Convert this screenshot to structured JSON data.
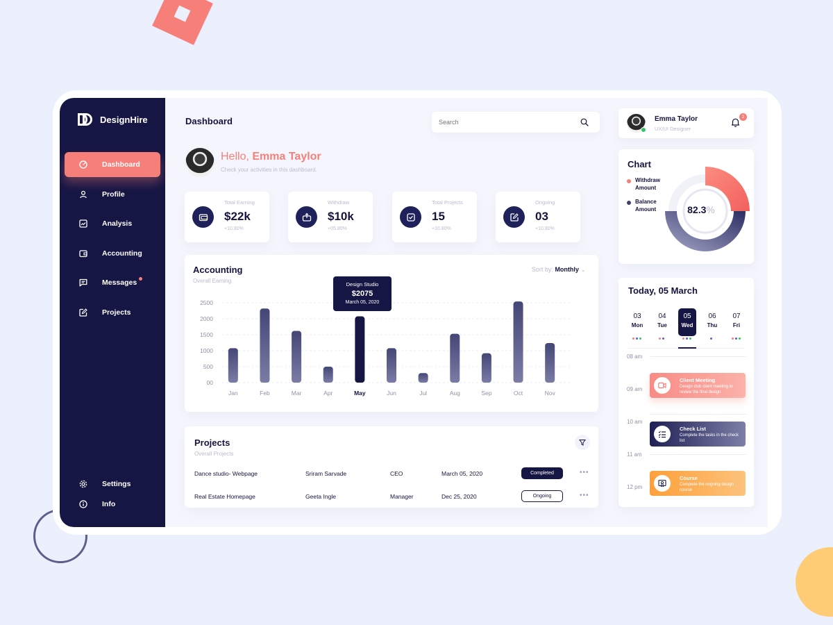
{
  "brand": {
    "name": "DesignHire"
  },
  "sidebar": {
    "items": [
      {
        "label": "Dashboard",
        "icon": "gauge-icon",
        "active": true
      },
      {
        "label": "Profile",
        "icon": "user-icon"
      },
      {
        "label": "Analysis",
        "icon": "chart-line-icon"
      },
      {
        "label": "Accounting",
        "icon": "wallet-icon"
      },
      {
        "label": "Messages",
        "icon": "message-icon",
        "unread": true
      },
      {
        "label": "Projects",
        "icon": "edit-icon"
      }
    ],
    "bottom": [
      {
        "label": "Settings",
        "icon": "gear-icon"
      },
      {
        "label": "Info",
        "icon": "info-icon"
      }
    ]
  },
  "header": {
    "title": "Dashboard",
    "search_placeholder": "Search"
  },
  "greeting": {
    "hello": "Hello, ",
    "name": "Emma Taylor",
    "subtitle": "Check your activities in this dashboard."
  },
  "stats": [
    {
      "label": "Total Earning",
      "value": "$22k",
      "change": "+10.80%",
      "icon": "wallet-icon"
    },
    {
      "label": "Withdraw",
      "value": "$10k",
      "change": "+05.80%",
      "icon": "withdraw-icon"
    },
    {
      "label": "Total Projects",
      "value": "15",
      "change": "+10.80%",
      "icon": "checkbox-icon"
    },
    {
      "label": "Ongoing",
      "value": "03",
      "change": "+10.80%",
      "icon": "edit-icon"
    }
  ],
  "accounting": {
    "title": "Accounting",
    "subtitle": "Overall Earning",
    "sort_label": "Sort by: ",
    "sort_value": "Monthly",
    "tooltip": {
      "name": "Design Studio",
      "value": "$2075",
      "date": "March 05, 2020"
    }
  },
  "chart_data": {
    "type": "bar",
    "categories": [
      "Jan",
      "Feb",
      "Mar",
      "Apr",
      "May",
      "Jun",
      "Jul",
      "Aug",
      "Sep",
      "Oct",
      "Nov"
    ],
    "values": [
      1080,
      2320,
      1620,
      500,
      2075,
      1080,
      300,
      1530,
      920,
      2540,
      1240
    ],
    "highlight": "May",
    "yticks": [
      "00",
      "500",
      "1000",
      "1500",
      "2000",
      "2500"
    ],
    "ylim": [
      0,
      2500
    ],
    "colors": {
      "bar": "#7b7ca6",
      "bar_top": "#444675",
      "highlight": "#161644"
    }
  },
  "projects": {
    "title": "Projects",
    "subtitle": "Overall Projects",
    "rows": [
      {
        "name": "Dance studio- Webpage",
        "person": "Sriram Sarvade",
        "role": "CEO",
        "date": "March 05, 2020",
        "status": "Completed"
      },
      {
        "name": "Real Estate Homepage",
        "person": "Geeta Ingle",
        "role": "Manager",
        "date": "Dec 25, 2020",
        "status": "Ongoing"
      }
    ]
  },
  "user": {
    "name": "Emma Taylor",
    "role": "UX/UI Designer",
    "notifications": "2"
  },
  "donut": {
    "title": "Chart",
    "legend": [
      {
        "label": "Withdraw Amount",
        "color": "#f77f79"
      },
      {
        "label": "Balance Amount",
        "color": "#3d3f6f"
      }
    ],
    "value": "82.3",
    "unit": "%",
    "withdraw_fraction": 0.25,
    "balance_fraction": 0.5
  },
  "schedule": {
    "title": "Today, 05 March",
    "days": [
      {
        "num": "03",
        "wd": "Mon",
        "dots": [
          "#f77f79",
          "#5a5ccf",
          "#34c366"
        ]
      },
      {
        "num": "04",
        "wd": "Tue",
        "dots": [
          "#f77f79",
          "#5a5ccf"
        ]
      },
      {
        "num": "05",
        "wd": "Wed",
        "active": true,
        "dots": [
          "#f77f79",
          "#5a5ccf",
          "#34c366"
        ]
      },
      {
        "num": "06",
        "wd": "Thu",
        "dots": [
          "#5a5ccf"
        ]
      },
      {
        "num": "07",
        "wd": "Fri",
        "dots": [
          "#f77f79",
          "#5a5ccf",
          "#34c366"
        ]
      }
    ],
    "times": [
      "08 am",
      "09 am",
      "10 am",
      "11 am",
      "12 pm"
    ],
    "events": [
      {
        "title": "Client Meeting",
        "desc": "Design club client meeting to review the final design",
        "type": "meeting",
        "icon": "video-icon"
      },
      {
        "title": "Check List",
        "desc": "Complete the tasks in the check list",
        "type": "check",
        "icon": "checklist-icon"
      },
      {
        "title": "Course",
        "desc": "Complete the ongoing design course",
        "type": "course",
        "icon": "certificate-icon"
      }
    ]
  }
}
